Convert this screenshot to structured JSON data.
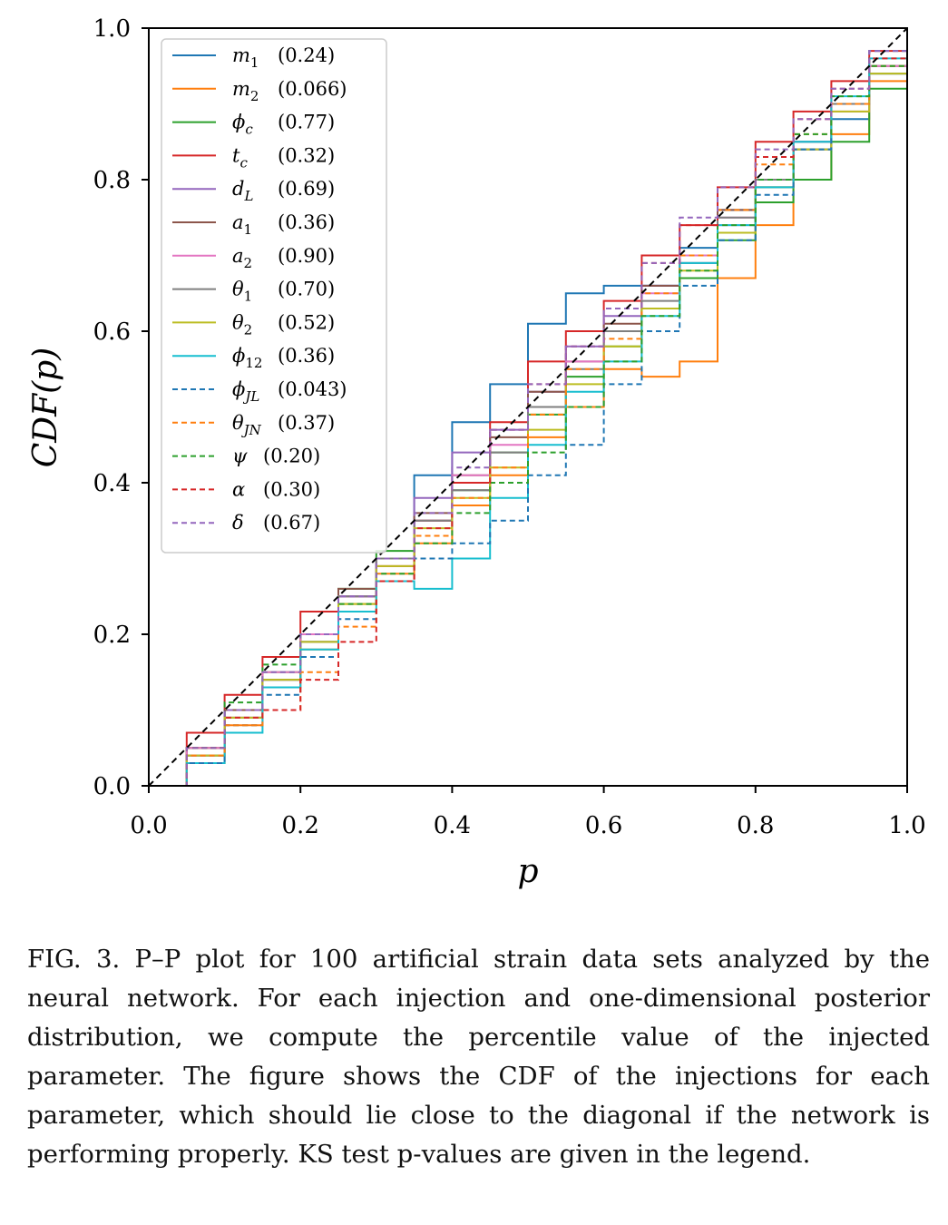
{
  "chart_data": {
    "type": "line",
    "title": "",
    "xlabel": "p",
    "ylabel": "CDF(p)",
    "xlim": [
      0,
      1
    ],
    "ylim": [
      0,
      1
    ],
    "xticks": [
      "0.0",
      "0.2",
      "0.4",
      "0.6",
      "0.8",
      "1.0"
    ],
    "yticks": [
      "0.0",
      "0.2",
      "0.4",
      "0.6",
      "0.8",
      "1.0"
    ],
    "legend_position": "upper-left",
    "reference_line": {
      "name": "diagonal",
      "x": [
        0,
        1
      ],
      "y": [
        0,
        1
      ],
      "color": "#000000",
      "style": "dashed"
    },
    "series": [
      {
        "name": "m_1",
        "ks_pvalue": "(0.24)",
        "color": "#1f77b4",
        "style": "solid",
        "x": [
          0,
          0.05,
          0.1,
          0.15,
          0.2,
          0.25,
          0.3,
          0.35,
          0.4,
          0.45,
          0.5,
          0.55,
          0.6,
          0.65,
          0.7,
          0.75,
          0.8,
          0.85,
          0.9,
          0.95,
          1.0
        ],
        "y": [
          0,
          0.04,
          0.1,
          0.14,
          0.19,
          0.25,
          0.3,
          0.41,
          0.48,
          0.53,
          0.61,
          0.65,
          0.66,
          0.66,
          0.71,
          0.76,
          0.8,
          0.84,
          0.88,
          0.94,
          1.0
        ]
      },
      {
        "name": "m_2",
        "ks_pvalue": "(0.066)",
        "color": "#ff7f0e",
        "style": "solid",
        "x": [
          0,
          0.05,
          0.1,
          0.15,
          0.2,
          0.25,
          0.3,
          0.35,
          0.4,
          0.45,
          0.5,
          0.55,
          0.6,
          0.65,
          0.7,
          0.75,
          0.8,
          0.85,
          0.9,
          0.95,
          1.0
        ],
        "y": [
          0,
          0.03,
          0.08,
          0.13,
          0.18,
          0.24,
          0.28,
          0.32,
          0.37,
          0.41,
          0.46,
          0.5,
          0.55,
          0.54,
          0.56,
          0.67,
          0.74,
          0.8,
          0.86,
          0.93,
          1.0
        ]
      },
      {
        "name": "phi_c",
        "ks_pvalue": "(0.77)",
        "color": "#2ca02c",
        "style": "solid",
        "x": [
          0,
          0.05,
          0.1,
          0.15,
          0.2,
          0.25,
          0.3,
          0.35,
          0.4,
          0.45,
          0.5,
          0.55,
          0.6,
          0.65,
          0.7,
          0.75,
          0.8,
          0.85,
          0.9,
          0.95,
          1.0
        ],
        "y": [
          0,
          0.05,
          0.1,
          0.15,
          0.2,
          0.26,
          0.31,
          0.35,
          0.39,
          0.44,
          0.49,
          0.54,
          0.58,
          0.63,
          0.67,
          0.72,
          0.77,
          0.8,
          0.85,
          0.92,
          0.98
        ]
      },
      {
        "name": "t_c",
        "ks_pvalue": "(0.32)",
        "color": "#d62728",
        "style": "solid",
        "x": [
          0,
          0.05,
          0.1,
          0.15,
          0.2,
          0.25,
          0.3,
          0.35,
          0.4,
          0.45,
          0.5,
          0.55,
          0.6,
          0.65,
          0.7,
          0.75,
          0.8,
          0.85,
          0.9,
          0.95,
          1.0
        ],
        "y": [
          0,
          0.07,
          0.12,
          0.17,
          0.23,
          0.25,
          0.29,
          0.35,
          0.4,
          0.48,
          0.56,
          0.6,
          0.64,
          0.7,
          0.74,
          0.79,
          0.85,
          0.89,
          0.93,
          0.97,
          1.0
        ]
      },
      {
        "name": "d_L",
        "ks_pvalue": "(0.69)",
        "color": "#9467bd",
        "style": "solid",
        "x": [
          0,
          0.05,
          0.1,
          0.15,
          0.2,
          0.25,
          0.3,
          0.35,
          0.4,
          0.45,
          0.5,
          0.55,
          0.6,
          0.65,
          0.7,
          0.75,
          0.8,
          0.85,
          0.9,
          0.95,
          1.0
        ],
        "y": [
          0,
          0.04,
          0.1,
          0.14,
          0.19,
          0.25,
          0.3,
          0.38,
          0.44,
          0.47,
          0.52,
          0.58,
          0.62,
          0.66,
          0.69,
          0.74,
          0.8,
          0.85,
          0.9,
          0.95,
          1.0
        ]
      },
      {
        "name": "a_1",
        "ks_pvalue": "(0.36)",
        "color": "#8c564b",
        "style": "solid",
        "x": [
          0,
          0.05,
          0.1,
          0.15,
          0.2,
          0.25,
          0.3,
          0.35,
          0.4,
          0.45,
          0.5,
          0.55,
          0.6,
          0.65,
          0.7,
          0.75,
          0.8,
          0.85,
          0.9,
          0.95,
          1.0
        ],
        "y": [
          0,
          0.05,
          0.1,
          0.14,
          0.2,
          0.26,
          0.3,
          0.36,
          0.41,
          0.46,
          0.52,
          0.56,
          0.61,
          0.66,
          0.7,
          0.76,
          0.79,
          0.84,
          0.9,
          0.95,
          0.99
        ]
      },
      {
        "name": "a_2",
        "ks_pvalue": "(0.90)",
        "color": "#e377c2",
        "style": "solid",
        "x": [
          0,
          0.05,
          0.1,
          0.15,
          0.2,
          0.25,
          0.3,
          0.35,
          0.4,
          0.45,
          0.5,
          0.55,
          0.6,
          0.65,
          0.7,
          0.75,
          0.8,
          0.85,
          0.9,
          0.95,
          1.0
        ],
        "y": [
          0,
          0.05,
          0.09,
          0.15,
          0.2,
          0.25,
          0.3,
          0.35,
          0.41,
          0.45,
          0.5,
          0.56,
          0.6,
          0.65,
          0.7,
          0.75,
          0.8,
          0.85,
          0.89,
          0.95,
          1.0
        ]
      },
      {
        "name": "theta_1",
        "ks_pvalue": "(0.70)",
        "color": "#7f7f7f",
        "style": "solid",
        "x": [
          0,
          0.05,
          0.1,
          0.15,
          0.2,
          0.25,
          0.3,
          0.35,
          0.4,
          0.45,
          0.5,
          0.55,
          0.6,
          0.65,
          0.7,
          0.75,
          0.8,
          0.85,
          0.9,
          0.95,
          1.0
        ],
        "y": [
          0,
          0.04,
          0.09,
          0.13,
          0.19,
          0.25,
          0.3,
          0.35,
          0.39,
          0.44,
          0.5,
          0.55,
          0.6,
          0.64,
          0.69,
          0.75,
          0.8,
          0.85,
          0.9,
          0.94,
          1.0
        ]
      },
      {
        "name": "theta_2",
        "ks_pvalue": "(0.52)",
        "color": "#bcbd22",
        "style": "solid",
        "x": [
          0,
          0.05,
          0.1,
          0.15,
          0.2,
          0.25,
          0.3,
          0.35,
          0.4,
          0.45,
          0.5,
          0.55,
          0.6,
          0.65,
          0.7,
          0.75,
          0.8,
          0.85,
          0.9,
          0.95,
          1.0
        ],
        "y": [
          0,
          0.04,
          0.09,
          0.14,
          0.19,
          0.24,
          0.29,
          0.34,
          0.38,
          0.42,
          0.47,
          0.53,
          0.58,
          0.63,
          0.68,
          0.73,
          0.79,
          0.84,
          0.89,
          0.94,
          0.99
        ]
      },
      {
        "name": "phi_12",
        "ks_pvalue": "(0.36)",
        "color": "#17becf",
        "style": "solid",
        "x": [
          0,
          0.05,
          0.1,
          0.15,
          0.2,
          0.25,
          0.3,
          0.35,
          0.4,
          0.45,
          0.5,
          0.55,
          0.6,
          0.65,
          0.7,
          0.75,
          0.8,
          0.85,
          0.9,
          0.95,
          1.0
        ],
        "y": [
          0,
          0.03,
          0.07,
          0.13,
          0.18,
          0.23,
          0.27,
          0.26,
          0.3,
          0.38,
          0.45,
          0.52,
          0.56,
          0.62,
          0.69,
          0.74,
          0.79,
          0.85,
          0.91,
          0.96,
          1.0
        ]
      },
      {
        "name": "phi_JL",
        "ks_pvalue": "(0.043)",
        "color": "#1f77b4",
        "style": "dashed",
        "x": [
          0,
          0.05,
          0.1,
          0.15,
          0.2,
          0.25,
          0.3,
          0.35,
          0.4,
          0.45,
          0.5,
          0.55,
          0.6,
          0.65,
          0.7,
          0.75,
          0.8,
          0.85,
          0.9,
          0.95,
          1.0
        ],
        "y": [
          0,
          0.03,
          0.08,
          0.12,
          0.17,
          0.22,
          0.27,
          0.3,
          0.32,
          0.35,
          0.41,
          0.45,
          0.53,
          0.6,
          0.66,
          0.72,
          0.78,
          0.84,
          0.9,
          0.97,
          1.0
        ]
      },
      {
        "name": "theta_JN",
        "ks_pvalue": "(0.37)",
        "color": "#ff7f0e",
        "style": "dashed",
        "x": [
          0,
          0.05,
          0.1,
          0.15,
          0.2,
          0.25,
          0.3,
          0.35,
          0.4,
          0.45,
          0.5,
          0.55,
          0.6,
          0.65,
          0.7,
          0.75,
          0.8,
          0.85,
          0.9,
          0.95,
          1.0
        ],
        "y": [
          0,
          0.04,
          0.08,
          0.1,
          0.15,
          0.21,
          0.27,
          0.33,
          0.38,
          0.42,
          0.49,
          0.55,
          0.59,
          0.65,
          0.7,
          0.76,
          0.82,
          0.86,
          0.9,
          0.95,
          0.99
        ]
      },
      {
        "name": "psi",
        "ks_pvalue": "(0.20)",
        "color": "#2ca02c",
        "style": "dashed",
        "x": [
          0,
          0.05,
          0.1,
          0.15,
          0.2,
          0.25,
          0.3,
          0.35,
          0.4,
          0.45,
          0.5,
          0.55,
          0.6,
          0.65,
          0.7,
          0.75,
          0.8,
          0.85,
          0.9,
          0.95,
          1.0
        ],
        "y": [
          0,
          0.05,
          0.11,
          0.16,
          0.2,
          0.24,
          0.28,
          0.32,
          0.36,
          0.4,
          0.44,
          0.5,
          0.56,
          0.62,
          0.68,
          0.74,
          0.8,
          0.86,
          0.91,
          0.95,
          1.0
        ]
      },
      {
        "name": "alpha",
        "ks_pvalue": "(0.30)",
        "color": "#d62728",
        "style": "dashed",
        "x": [
          0,
          0.05,
          0.1,
          0.15,
          0.2,
          0.25,
          0.3,
          0.35,
          0.4,
          0.45,
          0.5,
          0.55,
          0.6,
          0.65,
          0.7,
          0.75,
          0.8,
          0.85,
          0.9,
          0.95,
          1.0
        ],
        "y": [
          0,
          0.05,
          0.09,
          0.1,
          0.14,
          0.19,
          0.27,
          0.34,
          0.4,
          0.47,
          0.53,
          0.58,
          0.63,
          0.69,
          0.74,
          0.79,
          0.83,
          0.88,
          0.92,
          0.96,
          1.0
        ]
      },
      {
        "name": "delta",
        "ks_pvalue": "(0.67)",
        "color": "#9467bd",
        "style": "dashed",
        "x": [
          0,
          0.05,
          0.1,
          0.15,
          0.2,
          0.25,
          0.3,
          0.35,
          0.4,
          0.45,
          0.5,
          0.55,
          0.6,
          0.65,
          0.7,
          0.75,
          0.8,
          0.85,
          0.9,
          0.95,
          1.0
        ],
        "y": [
          0,
          0.05,
          0.1,
          0.15,
          0.2,
          0.25,
          0.3,
          0.36,
          0.42,
          0.47,
          0.53,
          0.58,
          0.63,
          0.69,
          0.75,
          0.79,
          0.84,
          0.88,
          0.92,
          0.97,
          1.0
        ]
      }
    ]
  },
  "caption": {
    "text": "FIG. 3. P–P plot for 100 artificial strain data sets analyzed by the neural network. For each injection and one-dimensional posterior distribution, we compute the percentile value of the injected parameter. The figure shows the CDF of the injections for each parameter, which should lie close to the diagonal if the network is performing properly. KS test p-values are given in the legend."
  }
}
